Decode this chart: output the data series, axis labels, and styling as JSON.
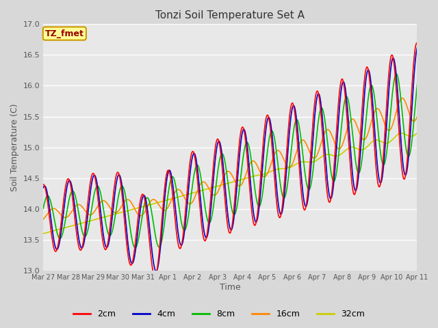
{
  "title": "Tonzi Soil Temperature Set A",
  "xlabel": "Time",
  "ylabel": "Soil Temperature (C)",
  "fig_bg_color": "#d8d8d8",
  "plot_bg_color": "#e8e8e8",
  "series_colors": {
    "2cm": "#ff0000",
    "4cm": "#0000cc",
    "8cm": "#00bb00",
    "16cm": "#ff8800",
    "32cm": "#cccc00"
  },
  "legend_label": "TZ_fmet",
  "legend_box_color": "#ffff99",
  "legend_box_border": "#cc9900",
  "ylim": [
    13.0,
    17.0
  ],
  "yticks": [
    13.0,
    13.5,
    14.0,
    14.5,
    15.0,
    15.5,
    16.0,
    16.5,
    17.0
  ],
  "xtick_labels": [
    "Mar 27",
    "Mar 28",
    "Mar 29",
    "Mar 30",
    "Mar 31",
    "Apr 1",
    "Apr 2",
    "Apr 3",
    "Apr 4",
    "Apr 5",
    "Apr 6",
    "Apr 7",
    "Apr 8",
    "Apr 9",
    "Apr 10",
    "Apr 11"
  ],
  "linewidth": 1.2,
  "figsize": [
    6.4,
    4.8
  ],
  "dpi": 100
}
